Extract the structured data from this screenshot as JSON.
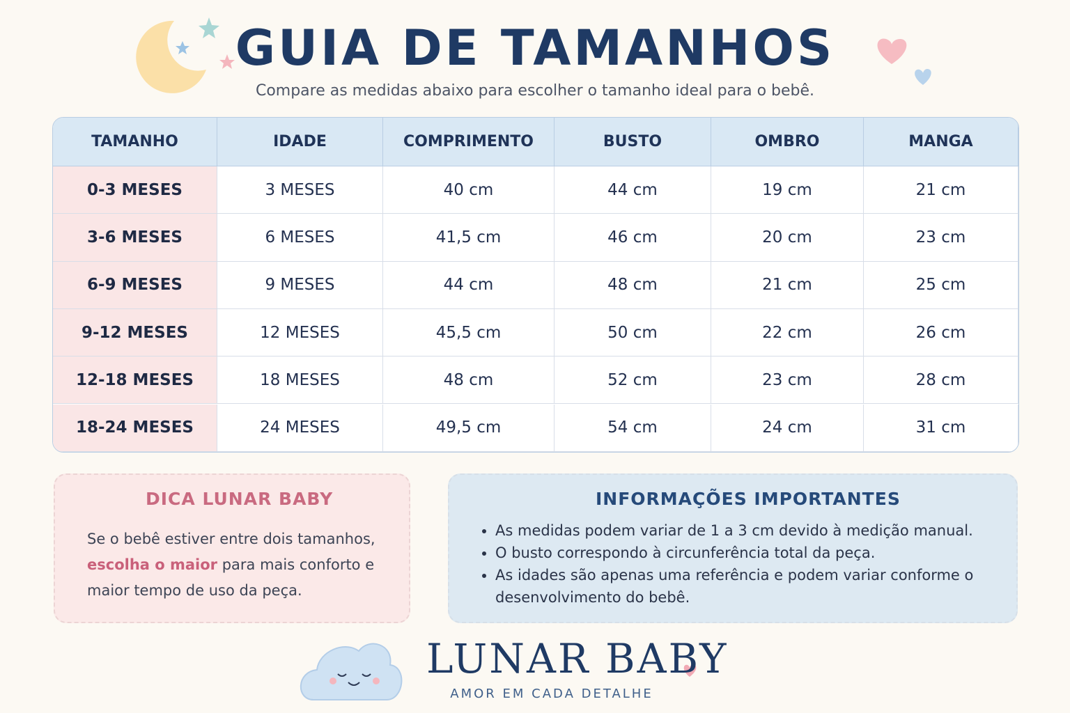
{
  "header": {
    "title": "GUIA DE TAMANHOS",
    "subtitle": "Compare as medidas abaixo para escolher o tamanho ideal para o bebê."
  },
  "table": {
    "columns": [
      "TAMANHO",
      "IDADE",
      "COMPRIMENTO",
      "BUSTO",
      "OMBRO",
      "MANGA"
    ],
    "rows": [
      [
        "0-3 MESES",
        "3 MESES",
        "40 cm",
        "44 cm",
        "19 cm",
        "21 cm"
      ],
      [
        "3-6 MESES",
        "6 MESES",
        "41,5 cm",
        "46 cm",
        "20 cm",
        "23 cm"
      ],
      [
        "6-9 MESES",
        "9 MESES",
        "44 cm",
        "48 cm",
        "21 cm",
        "25 cm"
      ],
      [
        "9-12 MESES",
        "12 MESES",
        "45,5 cm",
        "50 cm",
        "22 cm",
        "26 cm"
      ],
      [
        "12-18 MESES",
        "18 MESES",
        "48 cm",
        "52 cm",
        "23 cm",
        "28 cm"
      ],
      [
        "18-24 MESES",
        "24 MESES",
        "49,5 cm",
        "54 cm",
        "24 cm",
        "31 cm"
      ]
    ]
  },
  "tip": {
    "title": "DICA LUNAR BABY",
    "text_before": "Se o bebê estiver entre dois tamanhos,",
    "highlight": "escolha o maior",
    "text_after": "para mais conforto e maior tempo de uso da peça."
  },
  "info": {
    "title": "INFORMAÇÕES IMPORTANTES",
    "items": [
      "As medidas podem variar de 1 a 3 cm devido à medição manual.",
      "O busto correspondo à circunferência total da peça.",
      "As idades são apenas uma referência e podem variar conforme o desenvolvimento do bebê."
    ]
  },
  "brand": {
    "name": "LUNAR BABY",
    "tagline": "AMOR EM CADA DETALHE"
  }
}
